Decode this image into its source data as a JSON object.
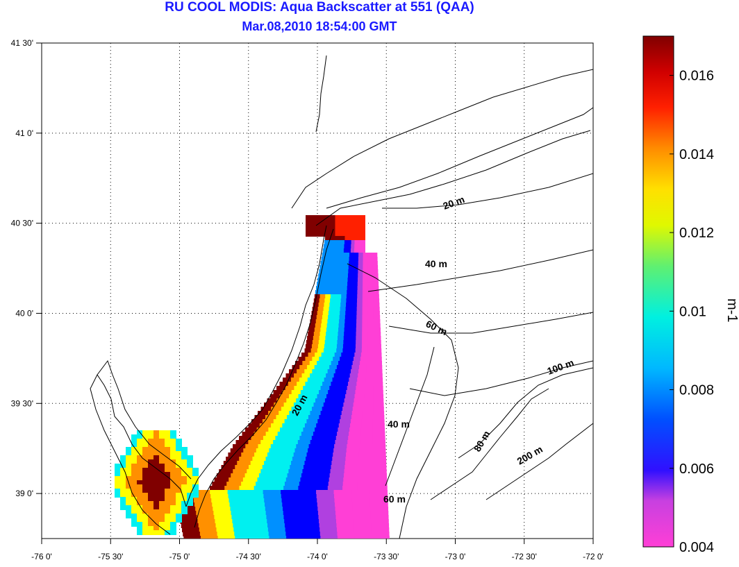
{
  "title": "RU COOL MODIS: Aqua Backscatter at 551 (QAA)",
  "subtitle": "Mar.08,2010 18:54:00 GMT",
  "map": {
    "lon_range": [
      -76.0,
      -72.0
    ],
    "lat_range": [
      38.75,
      41.5
    ],
    "lon_ticks": [
      -76.0,
      -75.5,
      -75.0,
      -74.5,
      -74.0,
      -73.5,
      -73.0,
      -72.5,
      -72.0
    ],
    "lon_tick_labels": [
      "-76 0'",
      "-75 30'",
      "-75 0'",
      "-74 30'",
      "-74 0'",
      "-73 30'",
      "-73 0'",
      "-72 30'",
      "-72 0'"
    ],
    "lat_ticks": [
      39.0,
      39.5,
      40.0,
      40.5,
      41.0,
      41.5
    ],
    "lat_tick_labels": [
      "39 0'",
      "39 30'",
      "40 0'",
      "40 30'",
      "41 0'",
      "41 30'"
    ],
    "grid": true,
    "isobath_labels": [
      "20 m",
      "40 m",
      "60 m",
      "100 m",
      "80 m",
      "200 m",
      "20 m",
      "40 m",
      "60 m"
    ]
  },
  "colorbar": {
    "min": 0.004,
    "max": 0.017,
    "unit": "m-1",
    "tick_values": [
      0.004,
      0.006,
      0.008,
      0.01,
      0.012,
      0.014,
      0.016
    ],
    "tick_labels": [
      "0.004",
      "0.006",
      "0.008",
      "0.01",
      "0.012",
      "0.014",
      "0.016"
    ],
    "colors": [
      "#ff3fd6",
      "#b040e0",
      "#0000ff",
      "#0090ff",
      "#00f0f0",
      "#40e090",
      "#ffff00",
      "#ff9000",
      "#ff2000",
      "#800000"
    ]
  }
}
